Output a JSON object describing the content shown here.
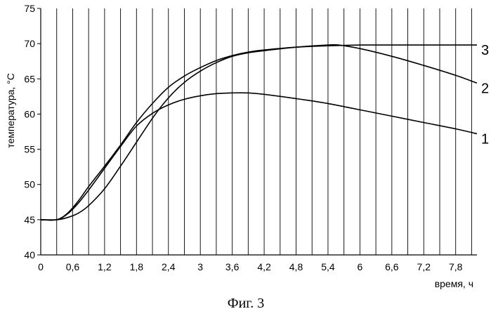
{
  "chart_data": {
    "type": "line",
    "title": "",
    "caption": "Фиг. 3",
    "xlabel": "время, ч",
    "ylabel": "температура, °С",
    "xlim": [
      0,
      8.2
    ],
    "ylim": [
      40,
      75
    ],
    "xticks": [
      0,
      0.6,
      1.2,
      1.8,
      2.4,
      3,
      3.6,
      4.2,
      4.8,
      5.4,
      6,
      6.6,
      7.2,
      7.8
    ],
    "xtick_labels": [
      "0",
      "0,6",
      "1,2",
      "1,8",
      "2,4",
      "3",
      "3,6",
      "4,2",
      "4,8",
      "5,4",
      "6",
      "6,6",
      "7,2",
      "7,8"
    ],
    "yticks": [
      40,
      45,
      50,
      55,
      60,
      65,
      70,
      75
    ],
    "ytick_labels": [
      "40",
      "45",
      "50",
      "55",
      "60",
      "65",
      "70",
      "75"
    ],
    "grid": {
      "vertical": true,
      "vertical_step": 0.3,
      "horizontal": false
    },
    "series": [
      {
        "name": "1",
        "color": "#000000",
        "x": [
          0,
          0.3,
          0.5,
          0.7,
          0.9,
          1.2,
          1.5,
          1.8,
          2.1,
          2.4,
          2.7,
          3.0,
          3.3,
          3.6,
          3.9,
          4.2,
          4.8,
          5.4,
          6.0,
          6.6,
          7.2,
          7.8,
          8.2
        ],
        "y": [
          45,
          45,
          45.8,
          47.3,
          49.2,
          52.3,
          55.4,
          58.3,
          60.1,
          61.3,
          62.1,
          62.6,
          62.9,
          63.0,
          63.0,
          62.8,
          62.2,
          61.5,
          60.6,
          59.7,
          58.8,
          57.9,
          57.2
        ]
      },
      {
        "name": "2",
        "color": "#000000",
        "x": [
          0,
          0.3,
          0.5,
          0.7,
          0.9,
          1.2,
          1.5,
          1.8,
          2.1,
          2.4,
          2.7,
          3.0,
          3.3,
          3.6,
          3.9,
          4.2,
          4.8,
          5.4,
          5.6,
          6.0,
          6.6,
          7.2,
          7.8,
          8.2
        ],
        "y": [
          45,
          45,
          45.3,
          45.9,
          47.0,
          49.4,
          52.6,
          56.0,
          59.4,
          62.3,
          64.5,
          66.1,
          67.3,
          68.2,
          68.7,
          69.0,
          69.5,
          69.8,
          69.8,
          69.3,
          68.2,
          66.9,
          65.5,
          64.4
        ]
      },
      {
        "name": "3",
        "color": "#000000",
        "x": [
          0,
          0.3,
          0.5,
          0.7,
          0.9,
          1.2,
          1.5,
          1.8,
          2.1,
          2.4,
          2.7,
          3.0,
          3.3,
          3.6,
          3.9,
          4.2,
          4.8,
          5.4,
          6.0,
          6.6,
          7.2,
          7.8,
          8.2
        ],
        "y": [
          45,
          45,
          45.9,
          47.6,
          49.7,
          52.6,
          55.6,
          58.8,
          61.5,
          63.8,
          65.4,
          66.6,
          67.6,
          68.3,
          68.8,
          69.1,
          69.5,
          69.7,
          69.8,
          69.8,
          69.8,
          69.8,
          69.8
        ]
      }
    ]
  }
}
